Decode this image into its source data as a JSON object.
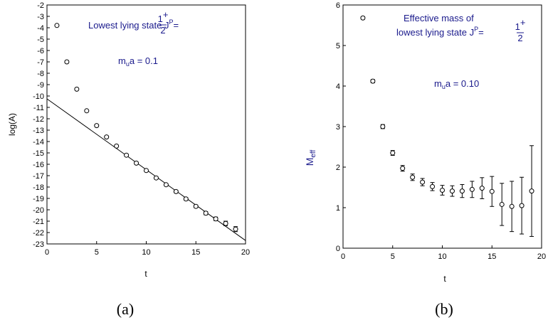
{
  "chart_data": [
    {
      "type": "scatter",
      "caption": "(a)",
      "xlabel": "t",
      "ylabel": "log(A)",
      "xlim": [
        0,
        20
      ],
      "ylim": [
        -23,
        -2
      ],
      "x_ticks": [
        "0",
        "5",
        "10",
        "15",
        "20"
      ],
      "y_ticks": [
        "-2",
        "-3",
        "-4",
        "-5",
        "-6",
        "-7",
        "-8",
        "-9",
        "-10",
        "-11",
        "-12",
        "-13",
        "-14",
        "-15",
        "-16",
        "-17",
        "-18",
        "-19",
        "-20",
        "-21",
        "-22",
        "-23"
      ],
      "annotation_title": {
        "prefix": "Lowest lying state  J",
        "sup": "P",
        "eq": "=",
        "num": "1",
        "num_sup": "+",
        "den": "2"
      },
      "annotation_param": {
        "m": "m",
        "sub": "u",
        "rest": "a = 0.1"
      },
      "series": [
        {
          "x": [
            1,
            2,
            3,
            4,
            5,
            6,
            7,
            8,
            9,
            10,
            11,
            12,
            13,
            14,
            15,
            16,
            17,
            18,
            19
          ],
          "y": [
            -3.8,
            -7.0,
            -9.4,
            -11.3,
            -12.6,
            -13.6,
            -14.4,
            -15.2,
            -15.9,
            -16.55,
            -17.2,
            -17.8,
            -18.4,
            -19.05,
            -19.7,
            -20.3,
            -20.8,
            -21.2,
            -21.7
          ],
          "err": [
            0.05,
            0.05,
            0.05,
            0.06,
            0.07,
            0.08,
            0.08,
            0.09,
            0.1,
            0.1,
            0.1,
            0.1,
            0.11,
            0.12,
            0.12,
            0.14,
            0.16,
            0.2,
            0.22
          ]
        }
      ],
      "fit_line": {
        "x": [
          0,
          20
        ],
        "y": [
          -10.25,
          -22.7
        ]
      }
    },
    {
      "type": "scatter",
      "caption": "(b)",
      "xlabel": "t",
      "ylabel": {
        "main": "M",
        "sub": "eff"
      },
      "xlim": [
        0,
        20
      ],
      "ylim": [
        0,
        6
      ],
      "x_ticks": [
        "0",
        "5",
        "10",
        "15",
        "20"
      ],
      "y_ticks": [
        "0",
        "1",
        "2",
        "3",
        "4",
        "5",
        "6"
      ],
      "annotation_title": {
        "line1": "Effective mass of",
        "prefix": "lowest lying state  J",
        "sup": "P",
        "eq": "=",
        "num": "1",
        "num_sup": "+",
        "den": "2"
      },
      "annotation_param": {
        "m": "m",
        "sub": "u",
        "rest": "a = 0.10"
      },
      "series": [
        {
          "x": [
            2,
            3,
            4,
            5,
            6,
            7,
            8,
            9,
            10,
            11,
            12,
            13,
            14,
            15,
            16,
            17,
            18,
            19
          ],
          "y": [
            5.68,
            4.12,
            3.0,
            2.35,
            1.97,
            1.75,
            1.63,
            1.52,
            1.43,
            1.41,
            1.41,
            1.45,
            1.48,
            1.4,
            1.08,
            1.03,
            1.05,
            1.41
          ],
          "err": [
            0.03,
            0.04,
            0.05,
            0.06,
            0.07,
            0.08,
            0.09,
            0.1,
            0.12,
            0.13,
            0.16,
            0.2,
            0.26,
            0.37,
            0.52,
            0.62,
            0.7,
            1.12
          ]
        }
      ]
    }
  ]
}
